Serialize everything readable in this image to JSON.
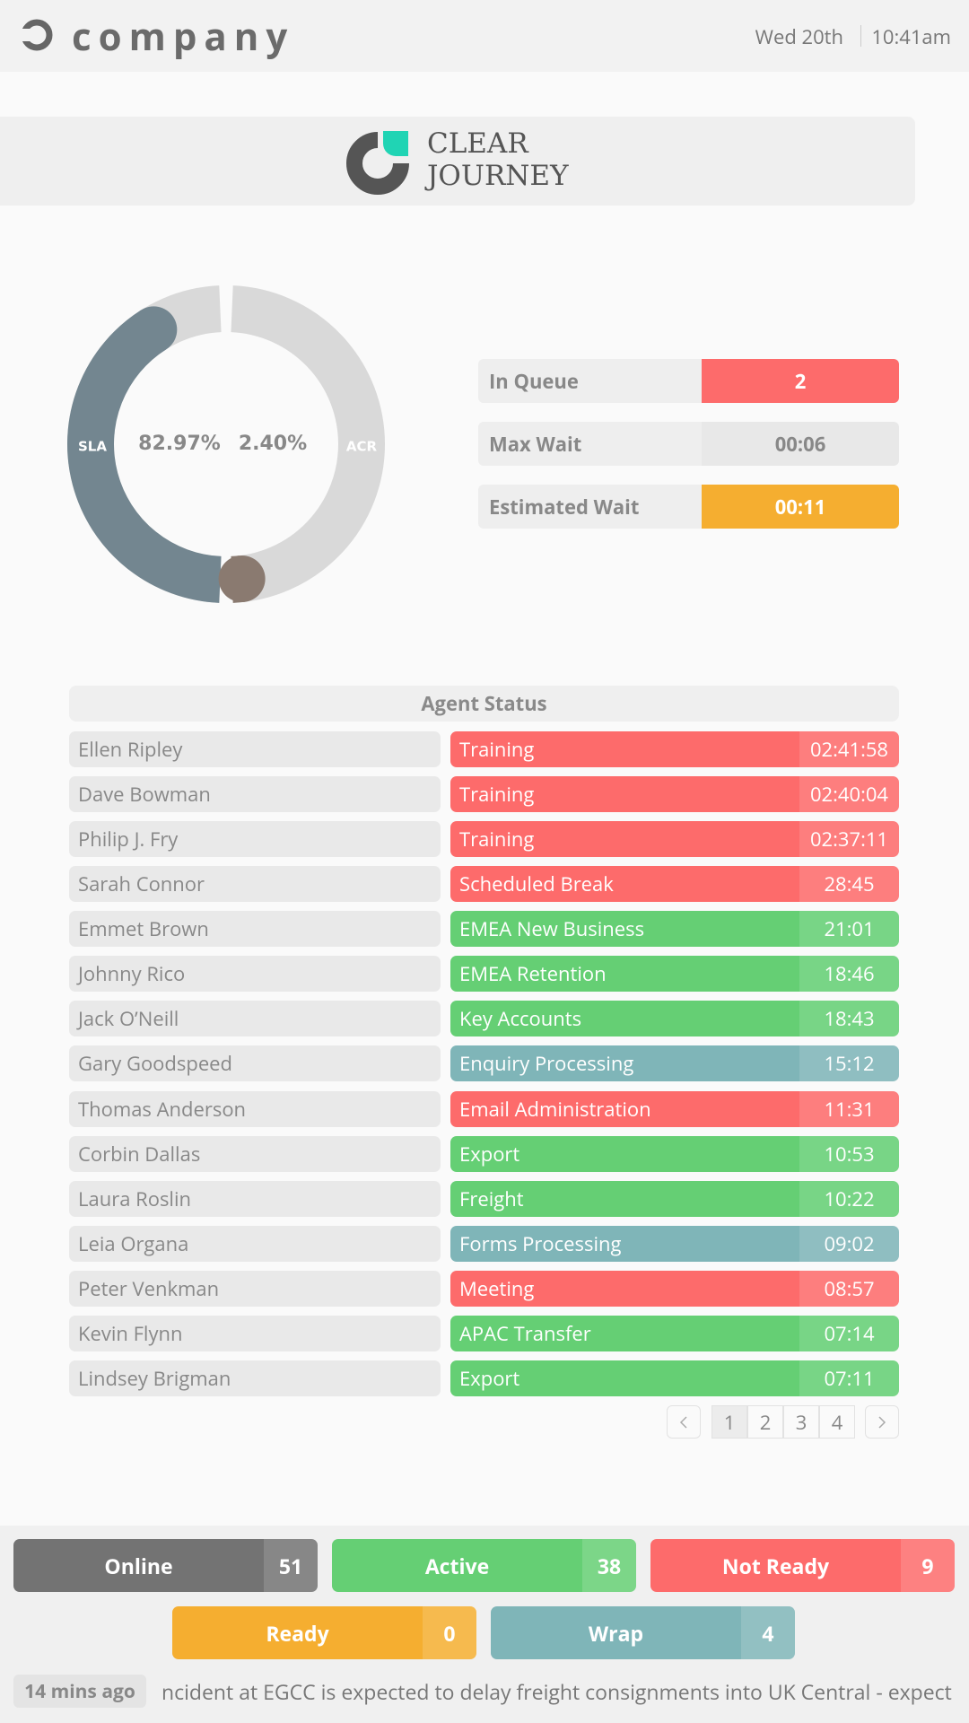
{
  "header": {
    "brand": "company",
    "date": "Wed 20th",
    "time": "10:41am"
  },
  "logo": {
    "line1": "CLEAR",
    "line2": "JOURNEY"
  },
  "gauge": {
    "left": {
      "label": "SLA",
      "value": 82.97,
      "value_label": "82.97%",
      "color": "#738690"
    },
    "right": {
      "label": "ACR",
      "value": 2.4,
      "value_label": "2.40%",
      "color": "#8a7a70"
    },
    "track_color": "#d9d9d9"
  },
  "queue": [
    {
      "label": "In Queue",
      "value": 2,
      "color": "#fd6b6b"
    },
    {
      "label": "Max Wait",
      "value": "00:06",
      "color": "#e8e8e8"
    },
    {
      "label": "Estimated Wait",
      "value": "00:11",
      "color": "#f5ae30"
    }
  ],
  "agents": {
    "title": "Agent Status",
    "rows": [
      {
        "name": "Ellen Ripley",
        "status": "Training",
        "time": "02:41:58",
        "color": "#fd6b6b"
      },
      {
        "name": "Dave Bowman",
        "status": "Training",
        "time": "02:40:04",
        "color": "#fd6b6b"
      },
      {
        "name": "Philip J. Fry",
        "status": "Training",
        "time": "02:37:11",
        "color": "#fd6b6b"
      },
      {
        "name": "Sarah Connor",
        "status": "Scheduled Break",
        "time": "28:45",
        "color": "#fd6b6b"
      },
      {
        "name": "Emmet Brown",
        "status": "EMEA New Business",
        "time": "21:01",
        "color": "#65cf74"
      },
      {
        "name": "Johnny Rico",
        "status": "EMEA Retention",
        "time": "18:46",
        "color": "#65cf74"
      },
      {
        "name": "Jack O’Neill",
        "status": "Key Accounts",
        "time": "18:43",
        "color": "#65cf74"
      },
      {
        "name": "Gary Goodspeed",
        "status": "Enquiry Processing",
        "time": "15:12",
        "color": "#7fb5b8"
      },
      {
        "name": "Thomas Anderson",
        "status": "Email Administration",
        "time": "11:31",
        "color": "#fd6b6b"
      },
      {
        "name": "Corbin Dallas",
        "status": "Export",
        "time": "10:53",
        "color": "#65cf74"
      },
      {
        "name": "Laura Roslin",
        "status": "Freight",
        "time": "10:22",
        "color": "#65cf74"
      },
      {
        "name": "Leia Organa",
        "status": "Forms Processing",
        "time": "09:02",
        "color": "#7fb5b8"
      },
      {
        "name": "Peter Venkman",
        "status": "Meeting",
        "time": "08:57",
        "color": "#fd6b6b"
      },
      {
        "name": "Kevin Flynn",
        "status": "APAC Transfer",
        "time": "07:14",
        "color": "#65cf74"
      },
      {
        "name": "Lindsey Brigman",
        "status": "Export",
        "time": "07:11",
        "color": "#65cf74"
      }
    ]
  },
  "pagination": {
    "pages": [
      1,
      2,
      3,
      4
    ],
    "current": 1
  },
  "summary": [
    {
      "label": "Online",
      "count": 51,
      "color": "#737373"
    },
    {
      "label": "Active",
      "count": 38,
      "color": "#65cf74"
    },
    {
      "label": "Not Ready",
      "count": 9,
      "color": "#fd6b6b"
    },
    {
      "label": "Ready",
      "count": 0,
      "color": "#f5ae30"
    },
    {
      "label": "Wrap",
      "count": 4,
      "color": "#7fb5b8"
    }
  ],
  "ticker": {
    "age": "14 mins ago",
    "text": "ncident at EGCC is expected to delay freight consignments into UK Central - expect"
  }
}
